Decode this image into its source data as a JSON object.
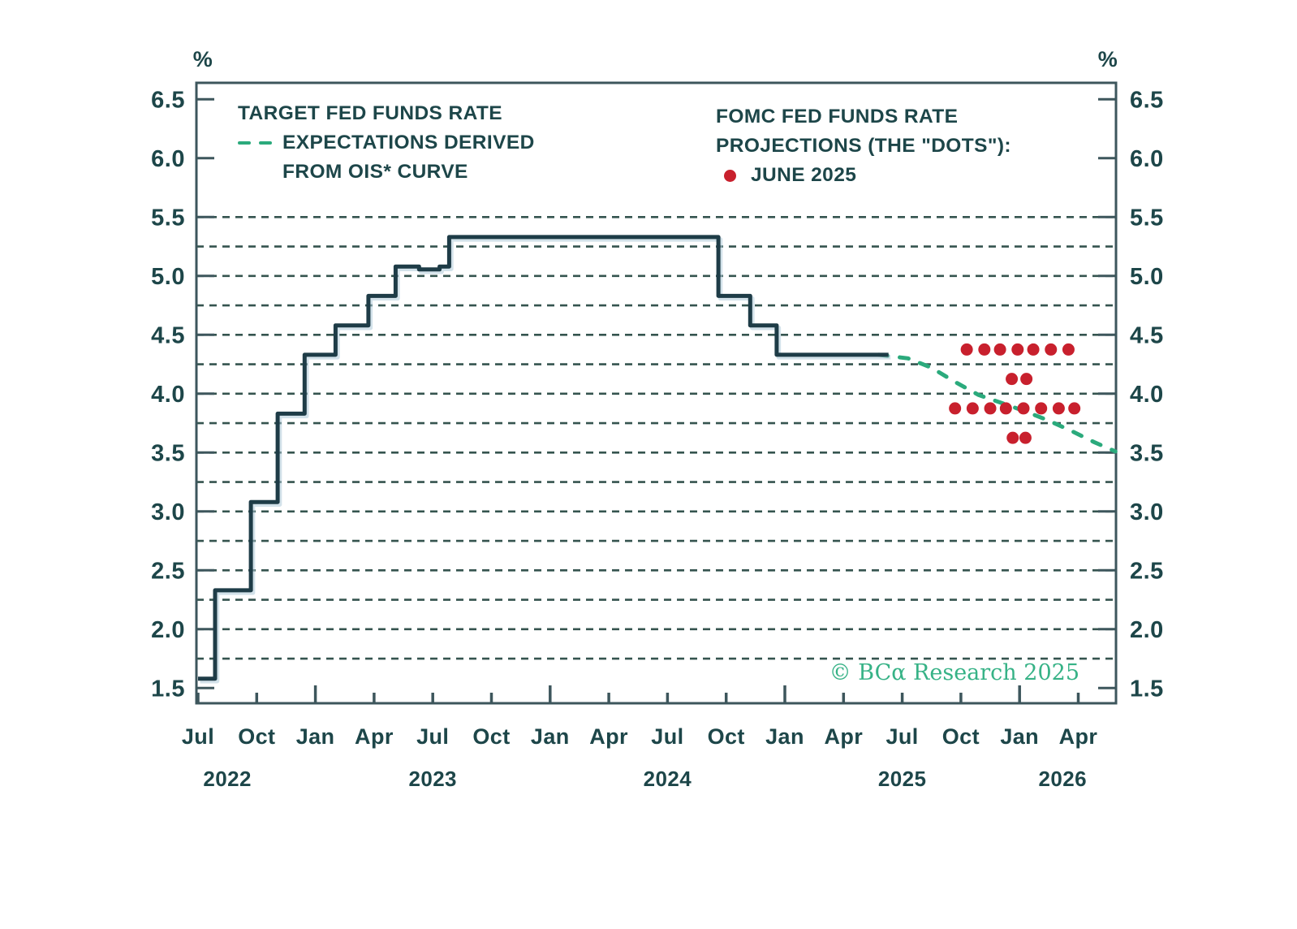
{
  "chart_data": {
    "type": "line",
    "unit_left": "%",
    "unit_right": "%",
    "y_axis": {
      "min": 1.5,
      "max": 6.5,
      "tick_step": 0.5,
      "grid_step": 0.25,
      "grid_top": 5.5,
      "grid_bottom": 1.75,
      "tick_labels": [
        "6.5",
        "6.0",
        "5.5",
        "5.0",
        "4.5",
        "4.0",
        "3.5",
        "3.0",
        "2.5",
        "2.0",
        "1.5"
      ]
    },
    "x_axis": {
      "origin": "Jul 2022",
      "months_span": 46.9,
      "quarter_ticks": [
        {
          "m": 0,
          "label": "Jul",
          "year_start": false
        },
        {
          "m": 3,
          "label": "Oct",
          "year_start": false
        },
        {
          "m": 6,
          "label": "Jan",
          "year_start": true
        },
        {
          "m": 9,
          "label": "Apr",
          "year_start": false
        },
        {
          "m": 12,
          "label": "Jul",
          "year_start": false
        },
        {
          "m": 15,
          "label": "Oct",
          "year_start": false
        },
        {
          "m": 18,
          "label": "Jan",
          "year_start": true
        },
        {
          "m": 21,
          "label": "Apr",
          "year_start": false
        },
        {
          "m": 24,
          "label": "Jul",
          "year_start": false
        },
        {
          "m": 27,
          "label": "Oct",
          "year_start": false
        },
        {
          "m": 30,
          "label": "Jan",
          "year_start": true
        },
        {
          "m": 33,
          "label": "Apr",
          "year_start": false
        },
        {
          "m": 36,
          "label": "Jul",
          "year_start": false
        },
        {
          "m": 39,
          "label": "Oct",
          "year_start": false
        },
        {
          "m": 42,
          "label": "Jan",
          "year_start": true
        },
        {
          "m": 45,
          "label": "Apr",
          "year_start": false
        }
      ],
      "year_labels": [
        {
          "m": 1.5,
          "label": "2022"
        },
        {
          "m": 12,
          "label": "2023"
        },
        {
          "m": 24,
          "label": "2024"
        },
        {
          "m": 36,
          "label": "2025"
        },
        {
          "m": 44.2,
          "label": "2026"
        }
      ]
    },
    "series": [
      {
        "name": "TARGET FED FUNDS RATE",
        "type": "step",
        "points": [
          [
            0,
            1.58
          ],
          [
            0.87,
            2.33
          ],
          [
            2.7,
            3.08
          ],
          [
            4.07,
            3.83
          ],
          [
            5.45,
            4.33
          ],
          [
            7.03,
            4.58
          ],
          [
            8.71,
            4.83
          ],
          [
            10.1,
            5.08
          ],
          [
            11.3,
            5.055
          ],
          [
            12.35,
            5.08
          ],
          [
            12.84,
            5.33
          ],
          [
            26.6,
            4.83
          ],
          [
            28.23,
            4.58
          ],
          [
            29.58,
            4.33
          ],
          [
            35.3,
            4.33
          ]
        ]
      },
      {
        "name": "TARGET FED FUNDS RATE EXPECTATIONS DERIVED FROM OIS* CURVE",
        "type": "dashed-line",
        "points": [
          [
            34.8,
            4.33
          ],
          [
            36.3,
            4.3
          ],
          [
            37.5,
            4.22
          ],
          [
            38.7,
            4.1
          ],
          [
            39.9,
            3.99
          ],
          [
            41.1,
            3.92
          ],
          [
            42.3,
            3.85
          ],
          [
            43.5,
            3.77
          ],
          [
            44.7,
            3.68
          ],
          [
            45.8,
            3.59
          ],
          [
            46.9,
            3.51
          ]
        ]
      },
      {
        "name": "FOMC FED FUNDS RATE PROJECTIONS (THE \"DOTS\"): JUNE 2025",
        "type": "scatter",
        "dot_radius": 7.5,
        "rows": [
          {
            "rate": 4.375,
            "months": [
              39.3,
              40.2,
              41.0,
              41.9,
              42.7,
              43.6,
              44.5
            ]
          },
          {
            "rate": 4.125,
            "months": [
              41.6,
              42.35
            ]
          },
          {
            "rate": 3.875,
            "months": [
              38.7,
              39.6,
              40.5,
              41.3,
              42.2,
              43.1,
              44.0,
              44.8
            ]
          },
          {
            "rate": 3.625,
            "months": [
              41.65,
              42.3
            ]
          }
        ]
      }
    ]
  },
  "legend_left": {
    "line1": "TARGET FED FUNDS RATE",
    "line2": "EXPECTATIONS DERIVED",
    "line3": "FROM OIS* CURVE"
  },
  "legend_right": {
    "line1": "FOMC FED FUNDS RATE",
    "line2": "PROJECTIONS (THE \"DOTS\"):",
    "bullet_label": "JUNE 2025"
  },
  "copyright": "© BCα Research 2025",
  "colors": {
    "text": "#1d4649",
    "frame": "#3d565c",
    "grid": "#35544f",
    "target_line": "#1e3c47",
    "ois_line": "#2baa7c",
    "dots": "#c8202d",
    "copyright": "#36b286"
  }
}
